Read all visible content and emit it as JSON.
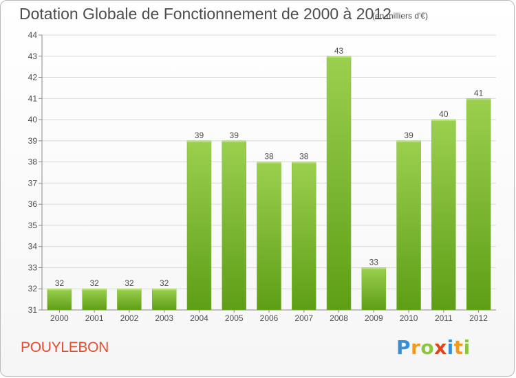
{
  "header": {
    "title": "Dotation Globale de Fonctionnement de 2000 à 2012",
    "unit": "(en milliers d'€)"
  },
  "footer": {
    "commune": "POUYLEBON",
    "logo": [
      "P",
      "r",
      "o",
      "x",
      "i",
      "t",
      "i"
    ]
  },
  "colors": {
    "bar_top": "#9bd04f",
    "bar_bottom": "#5e9e16",
    "text": "#4d4d4d",
    "grid": "#d9d9d9",
    "commune": "#e64b2e"
  },
  "chart_data": {
    "type": "bar",
    "title": "Dotation Globale de Fonctionnement de 2000 à 2012",
    "subtitle": "(en milliers d'€)",
    "xlabel": "",
    "ylabel": "",
    "categories": [
      "2000",
      "2001",
      "2002",
      "2003",
      "2004",
      "2005",
      "2006",
      "2007",
      "2008",
      "2009",
      "2010",
      "2011",
      "2012"
    ],
    "values": [
      32,
      32,
      32,
      32,
      39,
      39,
      38,
      38,
      43,
      33,
      39,
      40,
      41
    ],
    "ylim": [
      31,
      44
    ],
    "yticks": [
      31,
      32,
      33,
      34,
      35,
      36,
      37,
      38,
      39,
      40,
      41,
      42,
      43,
      44
    ],
    "grid": true,
    "legend": "none"
  }
}
